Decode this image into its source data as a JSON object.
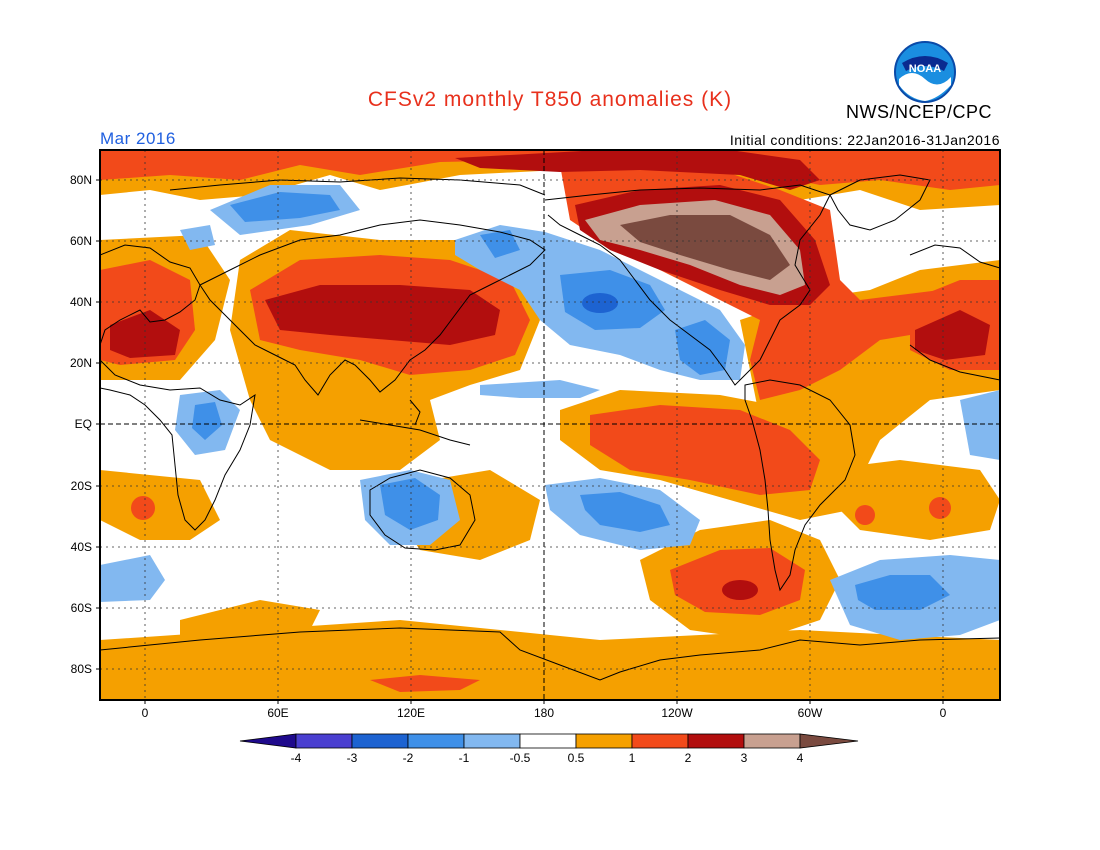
{
  "header": {
    "title": "CFSv2 monthly T850 anomalies (K)",
    "valid_month": "Mar 2016",
    "agency": "NWS/NCEP/CPC",
    "initial_conditions": "Initial conditions: 22Jan2016-31Jan2016",
    "logo_text": "NOAA"
  },
  "axes": {
    "lat_labels": [
      "80N",
      "60N",
      "40N",
      "20N",
      "EQ",
      "20S",
      "40S",
      "60S",
      "80S"
    ],
    "lon_labels": [
      "0",
      "60E",
      "120E",
      "180",
      "120W",
      "60W",
      "0"
    ]
  },
  "colorbar": {
    "labels": [
      "-4",
      "-3",
      "-2",
      "-1",
      "-0.5",
      "0.5",
      "1",
      "2",
      "3",
      "4"
    ]
  },
  "colors": {
    "title": "#e8301c",
    "valid_month": "#2060e0",
    "lt_neg4": "#1f0a8c",
    "neg4_neg3": "#4a3fd0",
    "neg3_neg2": "#1d63d1",
    "neg2_neg1": "#3f90e8",
    "neg1_neg05": "#82b8f0",
    "neutral": "#ffffff",
    "pos05_1": "#f5a000",
    "pos1_2": "#f24a1a",
    "pos2_3": "#b20e0e",
    "pos3_4": "#c8a090",
    "gt_4": "#7a4a3f"
  }
}
